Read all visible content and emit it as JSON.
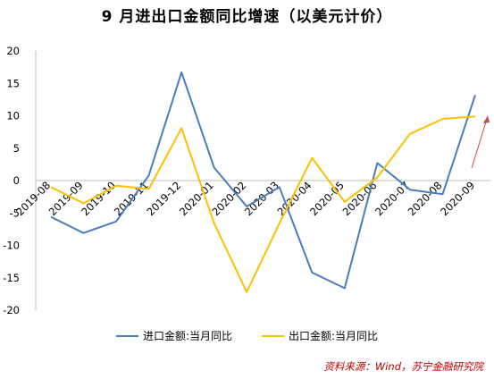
{
  "chart_data": {
    "type": "line",
    "title": "9 月进出口金额同比增速（以美元计价）",
    "categories": [
      "2019-08",
      "2019-09",
      "2019-10",
      "2019-11",
      "2019-12",
      "2020-01",
      "2020-02",
      "2020-03",
      "2020-04",
      "2020-05",
      "2020-06",
      "2020-07",
      "2020-08",
      "2020-09"
    ],
    "series": [
      {
        "name": "进口金额:当月同比",
        "color": "#4a7ebb",
        "values": [
          -5.6,
          -8.1,
          -6.3,
          0.8,
          16.7,
          2.0,
          -4.0,
          -1.0,
          -14.2,
          -16.6,
          2.7,
          -1.4,
          -2.1,
          13.2
        ]
      },
      {
        "name": "出口金额:当月同比",
        "color": "#ffc000",
        "values": [
          -1.0,
          -3.5,
          -0.8,
          -1.3,
          8.1,
          -6.6,
          -17.2,
          -6.6,
          3.5,
          -3.3,
          0.5,
          7.2,
          9.5,
          9.9
        ]
      }
    ],
    "ylim": [
      -20,
      20
    ],
    "yticks": [
      "20",
      "15",
      "10",
      "5",
      "0",
      "-5",
      "-10",
      "-15",
      "-20"
    ],
    "ytick_values": [
      20,
      15,
      10,
      5,
      0,
      -5,
      -10,
      -15,
      -20
    ],
    "legend_position": "bottom",
    "grid": false,
    "annotation": {
      "type": "arrow",
      "color": "#c0504d"
    }
  },
  "source": "资料来源：Wind，苏宁金融研究院"
}
